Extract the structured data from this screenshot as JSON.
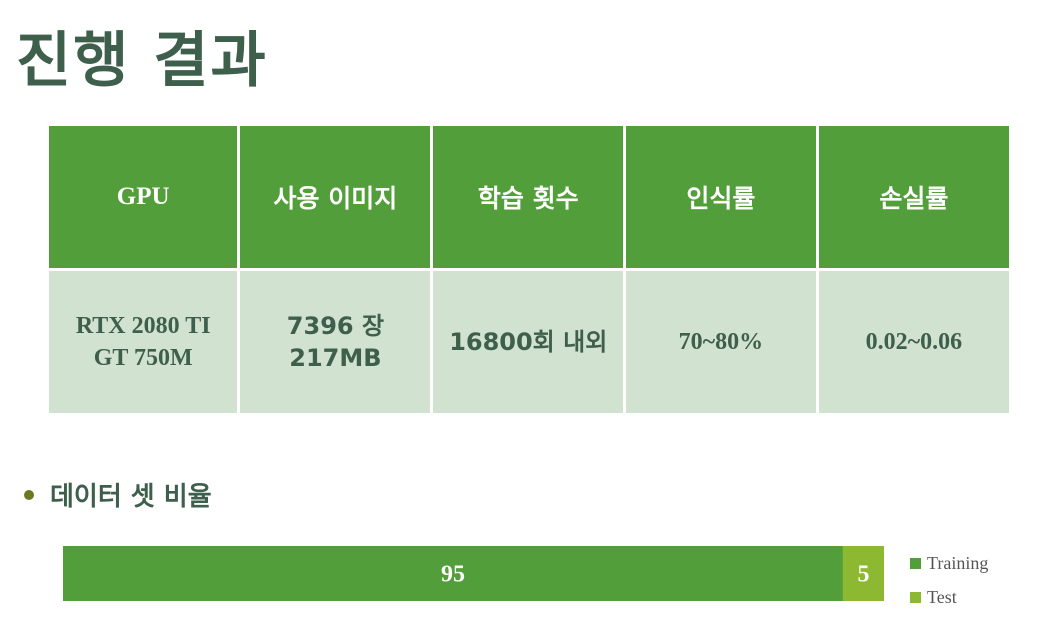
{
  "title": "진행 결과",
  "table": {
    "headers": [
      "GPU",
      "사용 이미지",
      "학습 횟수",
      "인식률",
      "손실률"
    ],
    "row": [
      [
        "RTX 2080 TI",
        "GT 750M"
      ],
      [
        "7396 장",
        "217MB"
      ],
      [
        "16800회 내외"
      ],
      [
        "70~80%"
      ],
      [
        "0.02~0.06"
      ]
    ]
  },
  "section": {
    "label": "데이터 셋 비율"
  },
  "chart_data": {
    "type": "bar",
    "orientation": "horizontal-stacked",
    "categories": [
      ""
    ],
    "series": [
      {
        "name": "Training",
        "values": [
          95
        ],
        "color": "#529e3a"
      },
      {
        "name": "Test",
        "values": [
          5
        ],
        "color": "#8db832"
      }
    ],
    "data_labels": [
      "95",
      "5"
    ],
    "legend": "right",
    "xlim": [
      0,
      100
    ],
    "grid": false
  }
}
